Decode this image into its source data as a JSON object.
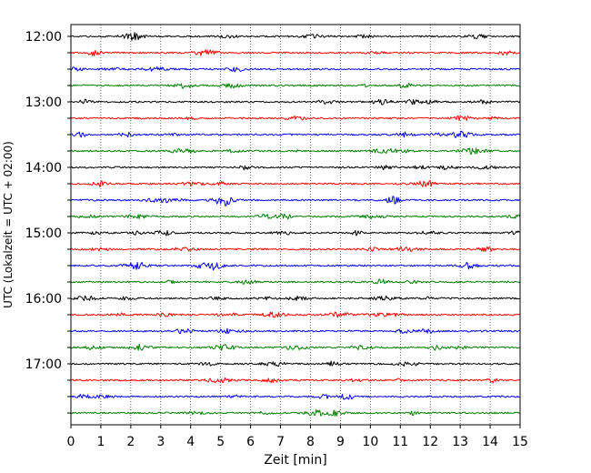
{
  "chart_data": {
    "type": "line",
    "title": "",
    "xlabel": "Zeit  [min]",
    "ylabel": "UTC (Lokalzeit = UTC + 02:00)",
    "xlim": [
      0,
      15
    ],
    "x_ticks": [
      0,
      1,
      2,
      3,
      4,
      5,
      6,
      7,
      8,
      9,
      10,
      11,
      12,
      13,
      14,
      15
    ],
    "y_tick_labels": [
      "12:00",
      "13:00",
      "14:00",
      "15:00",
      "16:00",
      "17:00"
    ],
    "trace_colors": [
      "#000000",
      "#ff0000",
      "#0000ff",
      "#008000"
    ],
    "trace_start_times": [
      "12:00",
      "12:15",
      "12:30",
      "12:45",
      "13:00",
      "13:15",
      "13:30",
      "13:45",
      "14:00",
      "14:15",
      "14:30",
      "14:45",
      "15:00",
      "15:15",
      "15:30",
      "15:45",
      "16:00",
      "16:15",
      "16:30",
      "16:45",
      "17:00",
      "17:15",
      "17:30",
      "17:45"
    ],
    "x_grid": true,
    "y_grid": false,
    "legend": "none"
  }
}
